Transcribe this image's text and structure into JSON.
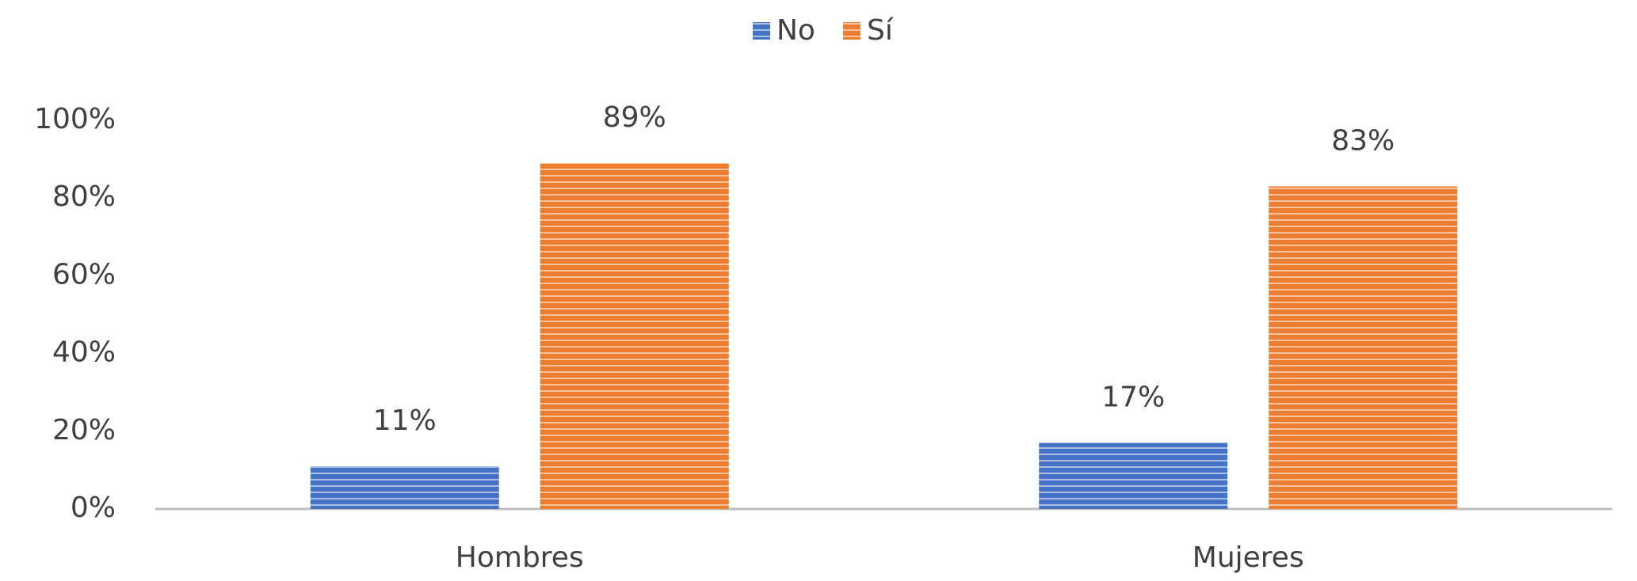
{
  "chart_data": {
    "type": "bar",
    "categories": [
      "Hombres",
      "Mujeres"
    ],
    "series": [
      {
        "name": "No",
        "color": "#4472c4",
        "values": [
          11,
          17
        ],
        "value_labels": [
          "11%",
          "17%"
        ]
      },
      {
        "name": "Sí",
        "color": "#ed7d31",
        "values": [
          89,
          83
        ],
        "value_labels": [
          "89%",
          "83%"
        ]
      }
    ],
    "ylim": [
      0,
      100
    ],
    "yticks": [
      {
        "value": 0,
        "label": "0%"
      },
      {
        "value": 20,
        "label": "20%"
      },
      {
        "value": 40,
        "label": "40%"
      },
      {
        "value": 60,
        "label": "60%"
      },
      {
        "value": 80,
        "label": "80%"
      },
      {
        "value": 100,
        "label": "100%"
      }
    ],
    "legend": "top",
    "grid": false
  }
}
